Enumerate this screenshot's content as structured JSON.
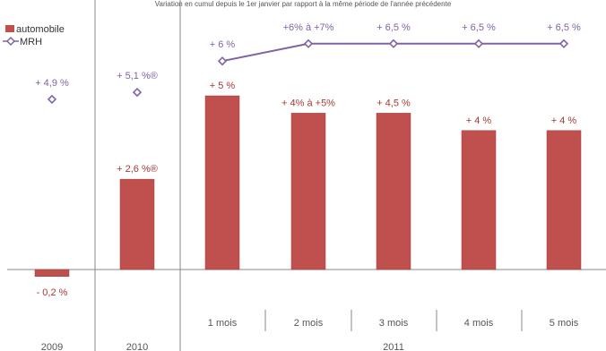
{
  "chart_data": {
    "type": "bar",
    "subtitle": "Variation en cumul depuis le 1er janvier par rapport à la même période de l'année précédente",
    "categories": [
      "2009",
      "2010",
      "1 mois",
      "2 mois",
      "3 mois",
      "4 mois",
      "5 mois"
    ],
    "group_label_2011": "2011",
    "legend_position": "top-left",
    "grid": false,
    "ylim": [
      -1,
      9.5
    ],
    "series": [
      {
        "name": "automobile",
        "type": "bar",
        "color": "#C0504D",
        "values": [
          -0.2,
          2.6,
          5,
          4.5,
          4.5,
          4,
          4
        ],
        "labels": [
          "- 0,2 %",
          "+ 2,6 %®",
          "+ 5 %",
          "+ 4% à +5%",
          "+ 4,5 %",
          "+ 4 %",
          "+ 4 %"
        ]
      },
      {
        "name": "MRH",
        "type": "line-marker",
        "color": "#7F63A6",
        "values": [
          4.9,
          5.1,
          6,
          6.5,
          6.5,
          6.5,
          6.5
        ],
        "labels": [
          "+ 4,9 %",
          "+ 5,1 %®",
          "+ 6 %",
          "+6% à +7%",
          "+ 6,5 %",
          "+ 6,5 %",
          "+ 6,5 %"
        ],
        "connect_from_index": 2
      }
    ]
  }
}
